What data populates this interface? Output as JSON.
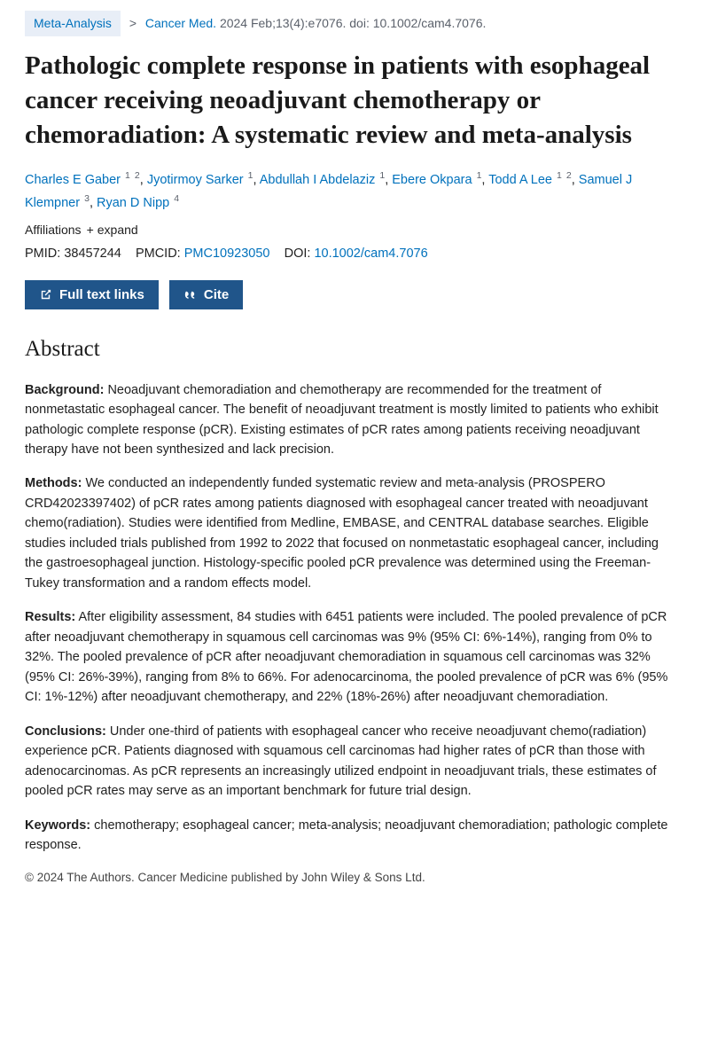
{
  "header": {
    "pub_type": "Meta-Analysis",
    "journal": "Cancer Med.",
    "citation": "2024 Feb;13(4):e7076. doi: 10.1002/cam4.7076."
  },
  "title": "Pathologic complete response in patients with esophageal cancer receiving neoadjuvant chemotherapy or chemoradiation: A systematic review and meta-analysis",
  "authors": [
    {
      "name": "Charles E Gaber",
      "aff": [
        "1",
        "2"
      ]
    },
    {
      "name": "Jyotirmoy Sarker",
      "aff": [
        "1"
      ]
    },
    {
      "name": "Abdullah I Abdelaziz",
      "aff": [
        "1"
      ]
    },
    {
      "name": "Ebere Okpara",
      "aff": [
        "1"
      ]
    },
    {
      "name": "Todd A Lee",
      "aff": [
        "1",
        "2"
      ]
    },
    {
      "name": "Samuel J Klempner",
      "aff": [
        "3"
      ]
    },
    {
      "name": "Ryan D Nipp",
      "aff": [
        "4"
      ]
    }
  ],
  "affiliations": {
    "label": "Affiliations",
    "expand": "expand"
  },
  "ids": {
    "pmid_label": "PMID:",
    "pmid": "38457244",
    "pmcid_label": "PMCID:",
    "pmcid": "PMC10923050",
    "doi_label": "DOI:",
    "doi": "10.1002/cam4.7076"
  },
  "buttons": {
    "fulltext": "Full text links",
    "cite": "Cite"
  },
  "abstract": {
    "heading": "Abstract",
    "background_label": "Background:",
    "background": " Neoadjuvant chemoradiation and chemotherapy are recommended for the treatment of nonmetastatic esophageal cancer. The benefit of neoadjuvant treatment is mostly limited to patients who exhibit pathologic complete response (pCR). Existing estimates of pCR rates among patients receiving neoadjuvant therapy have not been synthesized and lack precision.",
    "methods_label": "Methods:",
    "methods": " We conducted an independently funded systematic review and meta-analysis (PROSPERO CRD42023397402) of pCR rates among patients diagnosed with esophageal cancer treated with neoadjuvant chemo(radiation). Studies were identified from Medline, EMBASE, and CENTRAL database searches. Eligible studies included trials published from 1992 to 2022 that focused on nonmetastatic esophageal cancer, including the gastroesophageal junction. Histology-specific pooled pCR prevalence was determined using the Freeman-Tukey transformation and a random effects model.",
    "results_label": "Results:",
    "results": " After eligibility assessment, 84 studies with 6451 patients were included. The pooled prevalence of pCR after neoadjuvant chemotherapy in squamous cell carcinomas was 9% (95% CI: 6%-14%), ranging from 0% to 32%. The pooled prevalence of pCR after neoadjuvant chemoradiation in squamous cell carcinomas was 32% (95% CI: 26%-39%), ranging from 8% to 66%. For adenocarcinoma, the pooled prevalence of pCR was 6% (95% CI: 1%-12%) after neoadjuvant chemotherapy, and 22% (18%-26%) after neoadjuvant chemoradiation.",
    "conclusions_label": "Conclusions:",
    "conclusions": " Under one-third of patients with esophageal cancer who receive neoadjuvant chemo(radiation) experience pCR. Patients diagnosed with squamous cell carcinomas had higher rates of pCR than those with adenocarcinomas. As pCR represents an increasingly utilized endpoint in neoadjuvant trials, these estimates of pooled pCR rates may serve as an important benchmark for future trial design.",
    "keywords_label": "Keywords:",
    "keywords": " chemotherapy; esophageal cancer; meta-analysis; neoadjuvant chemoradiation; pathologic complete response."
  },
  "copyright": "© 2024 The Authors. Cancer Medicine published by John Wiley & Sons Ltd."
}
